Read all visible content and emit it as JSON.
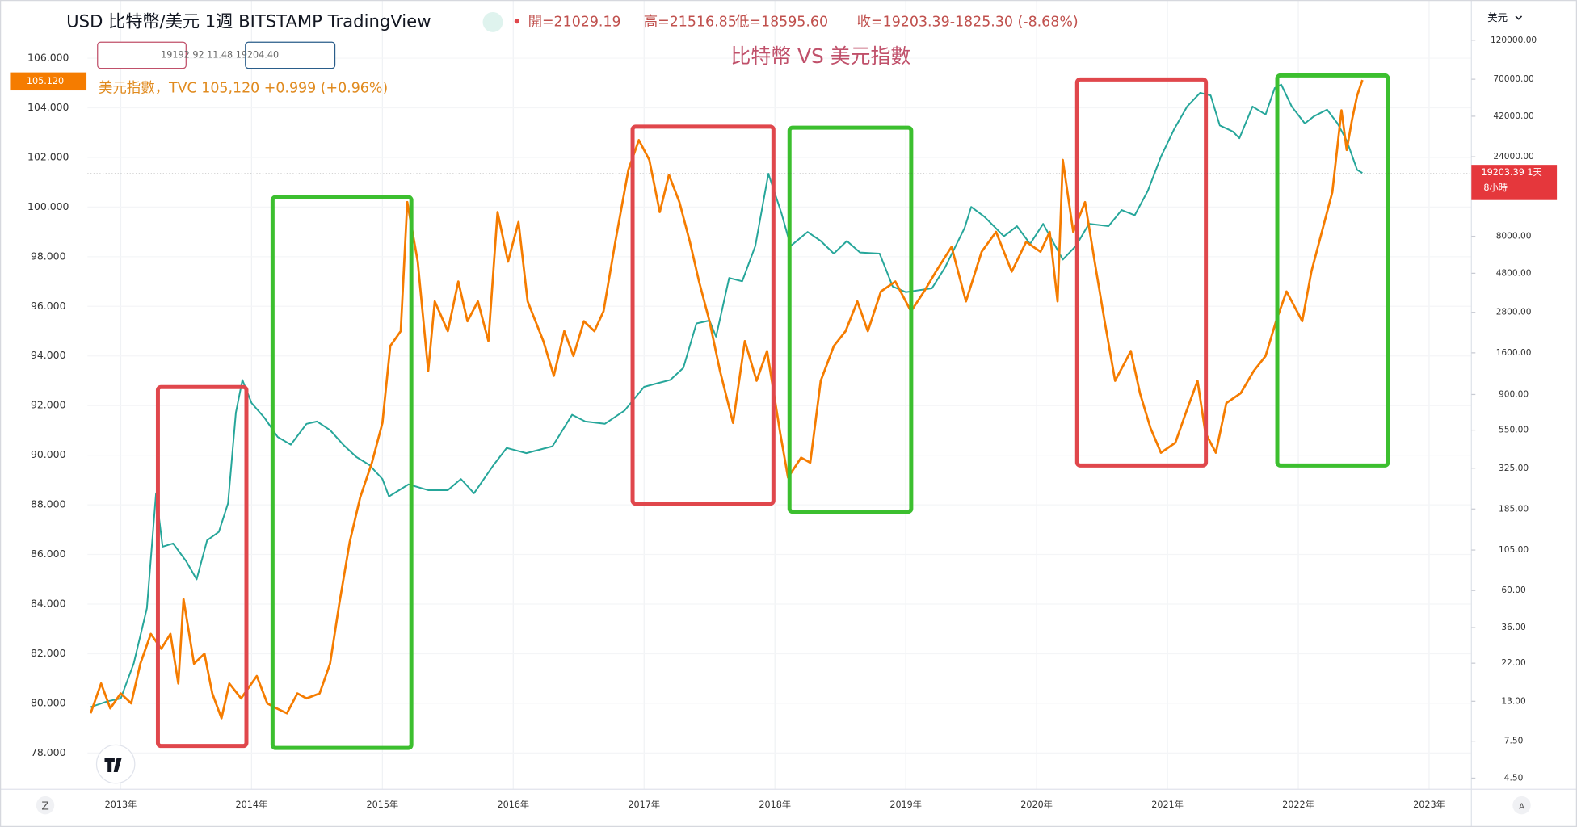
{
  "header": {
    "open": "開=21029.19",
    "high": "高=21516.85",
    "low": "低=18595.60",
    "close": "收=19203.39-1825.30 (-8.68%)",
    "currency": "美元",
    "inputs": "19192.92 11.48 19204.40"
  },
  "footer": {
    "left_button": "Z",
    "right_button": "A"
  },
  "chart_data": {
    "type": "line",
    "title": "比特幣 VS 美元指數",
    "left_price_tag": "105.120",
    "right_price_tag": "19203.39 1天",
    "right_price_tag_sub": "8小時",
    "xlim": [
      2012.746,
      2023.323
    ],
    "xticks": [
      {
        "value": 2013,
        "label": "2013年"
      },
      {
        "value": 2014,
        "label": "2014年"
      },
      {
        "value": 2015,
        "label": "2015年"
      },
      {
        "value": 2016,
        "label": "2016年"
      },
      {
        "value": 2017,
        "label": "2017年"
      },
      {
        "value": 2018,
        "label": "2018年"
      },
      {
        "value": 2019,
        "label": "2019年"
      },
      {
        "value": 2020,
        "label": "2020年"
      },
      {
        "value": 2021,
        "label": "2021年"
      },
      {
        "value": 2022,
        "label": "2022年"
      },
      {
        "value": 2023,
        "label": "2023年"
      }
    ],
    "ylim": [
      76.54,
      107.13
    ],
    "yticks": [
      {
        "value": 106,
        "label": "106.000"
      },
      {
        "value": 104,
        "label": "104.000"
      },
      {
        "value": 102,
        "label": "102.000"
      },
      {
        "value": 100,
        "label": "100.000"
      },
      {
        "value": 98,
        "label": "98.000"
      },
      {
        "value": 96,
        "label": "96.000"
      },
      {
        "value": 94,
        "label": "94.000"
      },
      {
        "value": 92,
        "label": "92.000"
      },
      {
        "value": 90,
        "label": "90.000"
      },
      {
        "value": 88,
        "label": "88.000"
      },
      {
        "value": 86,
        "label": "86.000"
      },
      {
        "value": 84,
        "label": "84.000"
      },
      {
        "value": 82,
        "label": "82.000"
      },
      {
        "value": 80,
        "label": "80.000"
      },
      {
        "value": 78,
        "label": "78.000"
      }
    ],
    "y2lim": [
      3.86,
      137900
    ],
    "y2_log": true,
    "y2ticks": [
      {
        "value": 120000,
        "label": "120000.00"
      },
      {
        "value": 70000,
        "label": "70000.00"
      },
      {
        "value": 42000,
        "label": "42000.00"
      },
      {
        "value": 24000,
        "label": "24000.00"
      },
      {
        "value": 8000,
        "label": "8000.00"
      },
      {
        "value": 4800,
        "label": "4800.00"
      },
      {
        "value": 2800,
        "label": "2800.00"
      },
      {
        "value": 1600,
        "label": "1600.00"
      },
      {
        "value": 900,
        "label": "900.00"
      },
      {
        "value": 550,
        "label": "550.00"
      },
      {
        "value": 325,
        "label": "325.00"
      },
      {
        "value": 185,
        "label": "185.00"
      },
      {
        "value": 105,
        "label": "105.00"
      },
      {
        "value": 60,
        "label": "60.00"
      },
      {
        "value": 36,
        "label": "36.00"
      },
      {
        "value": 22,
        "label": "22.00"
      },
      {
        "value": 13,
        "label": "13.00"
      },
      {
        "value": 7.5,
        "label": "7.50"
      },
      {
        "value": 4.5,
        "label": "4.50"
      }
    ],
    "grid": true,
    "series": [
      {
        "name": "美元指數，TVC 105,120 +0.999 (+0.96%)",
        "color": "#f57c00",
        "axis": "y",
        "x": [
          2012.77,
          2012.85,
          2012.92,
          2013.0,
          2013.08,
          2013.15,
          2013.23,
          2013.31,
          2013.38,
          2013.44,
          2013.48,
          2013.56,
          2013.64,
          2013.7,
          2013.77,
          2013.83,
          2013.92,
          2014.04,
          2014.12,
          2014.19,
          2014.27,
          2014.35,
          2014.42,
          2014.52,
          2014.6,
          2014.67,
          2014.75,
          2014.83,
          2014.92,
          2015.0,
          2015.06,
          2015.14,
          2015.19,
          2015.27,
          2015.35,
          2015.4,
          2015.5,
          2015.58,
          2015.65,
          2015.73,
          2015.81,
          2015.88,
          2015.96,
          2016.04,
          2016.11,
          2016.23,
          2016.31,
          2016.39,
          2016.46,
          2016.54,
          2016.62,
          2016.69,
          2016.78,
          2016.88,
          2016.96,
          2017.04,
          2017.12,
          2017.19,
          2017.27,
          2017.35,
          2017.42,
          2017.5,
          2017.58,
          2017.68,
          2017.77,
          2017.86,
          2017.94,
          2018.04,
          2018.1,
          2018.2,
          2018.27,
          2018.35,
          2018.45,
          2018.54,
          2018.63,
          2018.71,
          2018.81,
          2018.92,
          2019.04,
          2019.14,
          2019.23,
          2019.35,
          2019.46,
          2019.58,
          2019.69,
          2019.81,
          2019.92,
          2020.03,
          2020.1,
          2020.16,
          2020.2,
          2020.28,
          2020.37,
          2020.45,
          2020.52,
          2020.6,
          2020.72,
          2020.79,
          2020.87,
          2020.95,
          2021.06,
          2021.14,
          2021.23,
          2021.29,
          2021.37,
          2021.45,
          2021.56,
          2021.66,
          2021.75,
          2021.83,
          2021.91,
          2022.03,
          2022.1,
          2022.18,
          2022.26,
          2022.33,
          2022.37,
          2022.41,
          2022.45,
          2022.49
        ],
        "values": [
          79.6,
          80.8,
          79.8,
          80.4,
          80.0,
          81.6,
          82.8,
          82.2,
          82.8,
          80.8,
          84.2,
          81.6,
          82.0,
          80.4,
          79.4,
          80.8,
          80.2,
          81.1,
          80.0,
          79.8,
          79.6,
          80.4,
          80.2,
          80.4,
          81.6,
          84.0,
          86.5,
          88.3,
          89.7,
          91.3,
          94.4,
          95.0,
          100.2,
          97.8,
          93.4,
          96.2,
          95.0,
          97.0,
          95.4,
          96.2,
          94.6,
          99.8,
          97.8,
          99.4,
          96.2,
          94.6,
          93.2,
          95.0,
          94.0,
          95.4,
          95.0,
          95.8,
          98.6,
          101.5,
          102.7,
          101.9,
          99.8,
          101.3,
          100.2,
          98.6,
          97.0,
          95.4,
          93.4,
          91.3,
          94.6,
          93.0,
          94.2,
          90.9,
          89.1,
          89.9,
          89.7,
          93.0,
          94.4,
          95.0,
          96.2,
          95.0,
          96.6,
          97.0,
          95.8,
          96.6,
          97.4,
          98.4,
          96.2,
          98.2,
          99.0,
          97.4,
          98.6,
          98.2,
          99.0,
          96.2,
          101.9,
          99.0,
          100.2,
          97.6,
          95.4,
          93.0,
          94.2,
          92.5,
          91.1,
          90.1,
          90.5,
          91.7,
          93.0,
          90.9,
          90.1,
          92.1,
          92.5,
          93.4,
          94.0,
          95.4,
          96.6,
          95.4,
          97.4,
          99.0,
          100.6,
          103.9,
          102.3,
          103.5,
          104.5,
          105.12
        ]
      },
      {
        "name": "USD 比特幣/美元 1週 BITSTAMP TradingView",
        "color": "#26a69a",
        "axis": "y2",
        "x": [
          2012.77,
          2012.9,
          2013.0,
          2013.1,
          2013.2,
          2013.27,
          2013.32,
          2013.4,
          2013.5,
          2013.58,
          2013.66,
          2013.75,
          2013.82,
          2013.88,
          2013.93,
          2014.0,
          2014.1,
          2014.2,
          2014.3,
          2014.42,
          2014.5,
          2014.6,
          2014.7,
          2014.8,
          2014.9,
          2015.0,
          2015.05,
          2015.2,
          2015.35,
          2015.5,
          2015.6,
          2015.7,
          2015.85,
          2015.95,
          2016.1,
          2016.3,
          2016.45,
          2016.55,
          2016.7,
          2016.85,
          2017.0,
          2017.1,
          2017.2,
          2017.3,
          2017.4,
          2017.5,
          2017.55,
          2017.65,
          2017.75,
          2017.85,
          2017.95,
          2018.05,
          2018.12,
          2018.25,
          2018.35,
          2018.45,
          2018.55,
          2018.65,
          2018.8,
          2018.9,
          2019.0,
          2019.2,
          2019.3,
          2019.45,
          2019.5,
          2019.6,
          2019.75,
          2019.85,
          2019.95,
          2020.05,
          2020.2,
          2020.3,
          2020.4,
          2020.55,
          2020.65,
          2020.75,
          2020.85,
          2020.95,
          2021.05,
          2021.15,
          2021.25,
          2021.33,
          2021.4,
          2021.5,
          2021.55,
          2021.65,
          2021.75,
          2021.82,
          2021.87,
          2021.95,
          2022.05,
          2022.12,
          2022.22,
          2022.3,
          2022.37,
          2022.45,
          2022.49
        ],
        "values": [
          12,
          13,
          13.5,
          22,
          47,
          230,
          110,
          115,
          90,
          70,
          120,
          135,
          200,
          700,
          1100,
          800,
          650,
          500,
          450,
          600,
          620,
          550,
          450,
          380,
          340,
          280,
          220,
          260,
          240,
          240,
          280,
          230,
          340,
          430,
          400,
          440,
          680,
          620,
          600,
          720,
          1000,
          1050,
          1100,
          1300,
          2400,
          2500,
          2000,
          4500,
          4300,
          7000,
          19000,
          11000,
          7000,
          8500,
          7500,
          6300,
          7500,
          6400,
          6300,
          4000,
          3700,
          3900,
          5200,
          9000,
          12000,
          10500,
          8000,
          9200,
          7200,
          9500,
          5800,
          7000,
          9500,
          9200,
          11500,
          10700,
          15000,
          24000,
          35000,
          48000,
          58000,
          56000,
          37000,
          34000,
          31000,
          48000,
          43000,
          62000,
          65000,
          48000,
          38000,
          42000,
          46000,
          38000,
          30000,
          20000,
          19203.39
        ]
      }
    ]
  }
}
